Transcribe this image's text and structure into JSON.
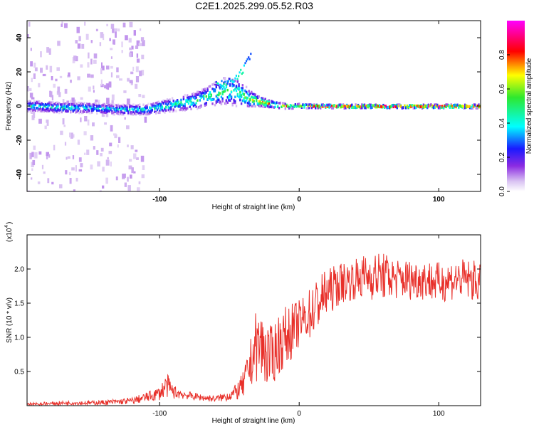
{
  "title": "C2E1.2025.299.05.52.R03",
  "colorbar": {
    "label": "Normalized spectral amplitude",
    "ticks": [
      "0.0",
      "0.2",
      "0.4",
      "0.6",
      "0.8"
    ],
    "tick_values": [
      0.0,
      0.2,
      0.4,
      0.6,
      0.8
    ],
    "range": [
      0.0,
      1.0
    ],
    "colors": [
      "#ffffff",
      "#d9c2f2",
      "#8b2be2",
      "#1a1aff",
      "#00ffff",
      "#2ee82e",
      "#ffff00",
      "#ff0000",
      "#ff00ff"
    ]
  },
  "chart_data": [
    {
      "type": "heatmap",
      "title": "C2E1.2025.299.05.52.R03",
      "xlabel": "Height of straight line (km)",
      "ylabel": "Frequency (Hz)",
      "xlim": [
        -195,
        130
      ],
      "ylim": [
        -50,
        50
      ],
      "xticks": [
        -100,
        0,
        100
      ],
      "xtick_labels": [
        "-100",
        "0",
        "100"
      ],
      "yticks": [
        -40,
        -20,
        0,
        20,
        40
      ],
      "ytick_labels": [
        "-40",
        "-20",
        "0",
        "20",
        "40"
      ],
      "ridge": {
        "heights_km": [
          -190,
          -170,
          -150,
          -130,
          -110,
          -90,
          -75,
          -65,
          -55,
          -45,
          -38,
          -30,
          -20,
          -10,
          0,
          10,
          20,
          40,
          60,
          80,
          100,
          120,
          130
        ],
        "frequency_hz": [
          0,
          -1,
          -1,
          -2,
          -2,
          1,
          3,
          6,
          9,
          8,
          5,
          3,
          1,
          0,
          0,
          0,
          0,
          0,
          0,
          0,
          0,
          0,
          0
        ],
        "spread_hz": [
          3,
          3,
          3,
          3,
          3,
          4,
          5,
          6,
          8,
          8,
          6,
          3,
          2,
          1.5,
          1.5,
          1,
          1,
          1,
          1,
          1,
          1,
          1,
          1
        ],
        "amplitude": [
          0.45,
          0.45,
          0.4,
          0.4,
          0.45,
          0.5,
          0.5,
          0.55,
          0.55,
          0.55,
          0.6,
          0.75,
          0.85,
          0.75,
          0.6,
          0.95,
          0.95,
          0.95,
          0.95,
          0.95,
          0.95,
          0.95,
          0.95
        ]
      },
      "branch": {
        "heights_km": [
          -60,
          -50,
          -45,
          -40,
          -35
        ],
        "frequency_hz": [
          12,
          14,
          16,
          22,
          30
        ]
      }
    },
    {
      "type": "line",
      "xlabel": "Height of straight line (km)",
      "ylabel": "SNR (10 * v/v)",
      "yscale_label": "(x10",
      "yscale_exponent": "4",
      "xlim": [
        -195,
        130
      ],
      "ylim": [
        0,
        2.5
      ],
      "xticks": [
        -100,
        0,
        100
      ],
      "xtick_labels": [
        "-100",
        "0",
        "100"
      ],
      "yticks": [
        0.5,
        1.0,
        1.5,
        2.0
      ],
      "ytick_labels": [
        "0.5",
        "1.0",
        "1.5",
        "2.0"
      ],
      "line_color": "#e8302a",
      "series": [
        {
          "name": "SNR",
          "x": [
            -195,
            -180,
            -165,
            -150,
            -135,
            -120,
            -110,
            -100,
            -95,
            -90,
            -80,
            -70,
            -60,
            -55,
            -50,
            -45,
            -40,
            -35,
            -32,
            -28,
            -25,
            -20,
            -15,
            -10,
            -5,
            0,
            5,
            10,
            15,
            20,
            30,
            40,
            50,
            60,
            70,
            80,
            90,
            100,
            110,
            120,
            130
          ],
          "mean": [
            0.02,
            0.03,
            0.04,
            0.04,
            0.05,
            0.07,
            0.12,
            0.18,
            0.3,
            0.2,
            0.15,
            0.12,
            0.1,
            0.12,
            0.15,
            0.2,
            0.3,
            0.6,
            0.85,
            0.9,
            0.8,
            0.7,
            0.9,
            1.0,
            1.1,
            1.2,
            1.3,
            1.4,
            1.55,
            1.65,
            1.8,
            1.85,
            1.9,
            1.9,
            1.85,
            1.85,
            1.85,
            1.8,
            1.85,
            1.85,
            1.8
          ],
          "amplitude": [
            0.02,
            0.03,
            0.03,
            0.03,
            0.04,
            0.05,
            0.07,
            0.1,
            0.18,
            0.1,
            0.06,
            0.05,
            0.05,
            0.06,
            0.08,
            0.12,
            0.2,
            0.35,
            0.5,
            0.55,
            0.5,
            0.45,
            0.45,
            0.45,
            0.4,
            0.35,
            0.35,
            0.4,
            0.4,
            0.35,
            0.3,
            0.3,
            0.35,
            0.35,
            0.3,
            0.3,
            0.3,
            0.3,
            0.3,
            0.3,
            0.3
          ]
        }
      ]
    }
  ]
}
